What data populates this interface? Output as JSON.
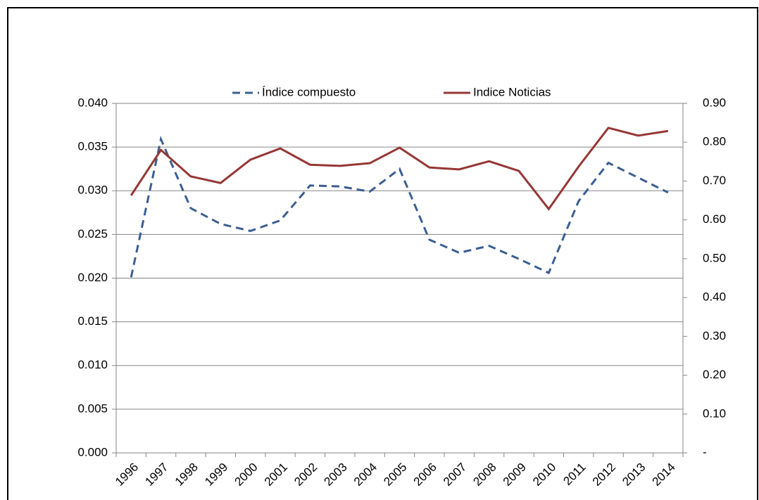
{
  "chart_data": {
    "type": "line",
    "categories": [
      "1996",
      "1997",
      "1998",
      "1999",
      "2000",
      "2001",
      "2002",
      "2003",
      "2004",
      "2005",
      "2006",
      "2007",
      "2008",
      "2009",
      "2010",
      "2011",
      "2012",
      "2013",
      "2014"
    ],
    "series": [
      {
        "name": "Índice compuesto",
        "color": "#3b5e92",
        "style": "dashed",
        "values": [
          0.0201,
          0.0359,
          0.028,
          0.0262,
          0.0254,
          0.0266,
          0.0306,
          0.0305,
          0.0299,
          0.0325,
          0.0244,
          0.0229,
          0.0237,
          0.0222,
          0.0206,
          0.0288,
          0.0332,
          0.0315,
          0.0298
        ]
      },
      {
        "name": "Indice Noticias",
        "color": "#953735",
        "style": "solid",
        "axis": "y2",
        "values": [
          0.663,
          0.78,
          0.712,
          0.695,
          0.755,
          0.784,
          0.742,
          0.739,
          0.746,
          0.786,
          0.735,
          0.73,
          0.751,
          0.726,
          0.628,
          0.737,
          0.837,
          0.817,
          0.829
        ]
      }
    ],
    "ylim": [
      0,
      0.04
    ],
    "yticks": [
      {
        "value": 0,
        "label": "0.000"
      },
      {
        "value": 0.005,
        "label": "0.005"
      },
      {
        "value": 0.01,
        "label": "0.010"
      },
      {
        "value": 0.015,
        "label": "0.015"
      },
      {
        "value": 0.02,
        "label": "0.020"
      },
      {
        "value": 0.025,
        "label": "0.025"
      },
      {
        "value": 0.03,
        "label": "0.030"
      },
      {
        "value": 0.035,
        "label": "0.035"
      },
      {
        "value": 0.04,
        "label": "0.040"
      }
    ],
    "y2lim": [
      0,
      0.9
    ],
    "y2ticks": [
      {
        "value": 0,
        "label": "-"
      },
      {
        "value": 0.1,
        "label": "0.10"
      },
      {
        "value": 0.2,
        "label": "0.20"
      },
      {
        "value": 0.3,
        "label": "0.30"
      },
      {
        "value": 0.4,
        "label": "0.40"
      },
      {
        "value": 0.5,
        "label": "0.50"
      },
      {
        "value": 0.6,
        "label": "0.60"
      },
      {
        "value": 0.7,
        "label": "0.70"
      },
      {
        "value": 0.8,
        "label": "0.80"
      },
      {
        "value": 0.9,
        "label": "0.90"
      }
    ],
    "grid": true,
    "legend": "top"
  }
}
